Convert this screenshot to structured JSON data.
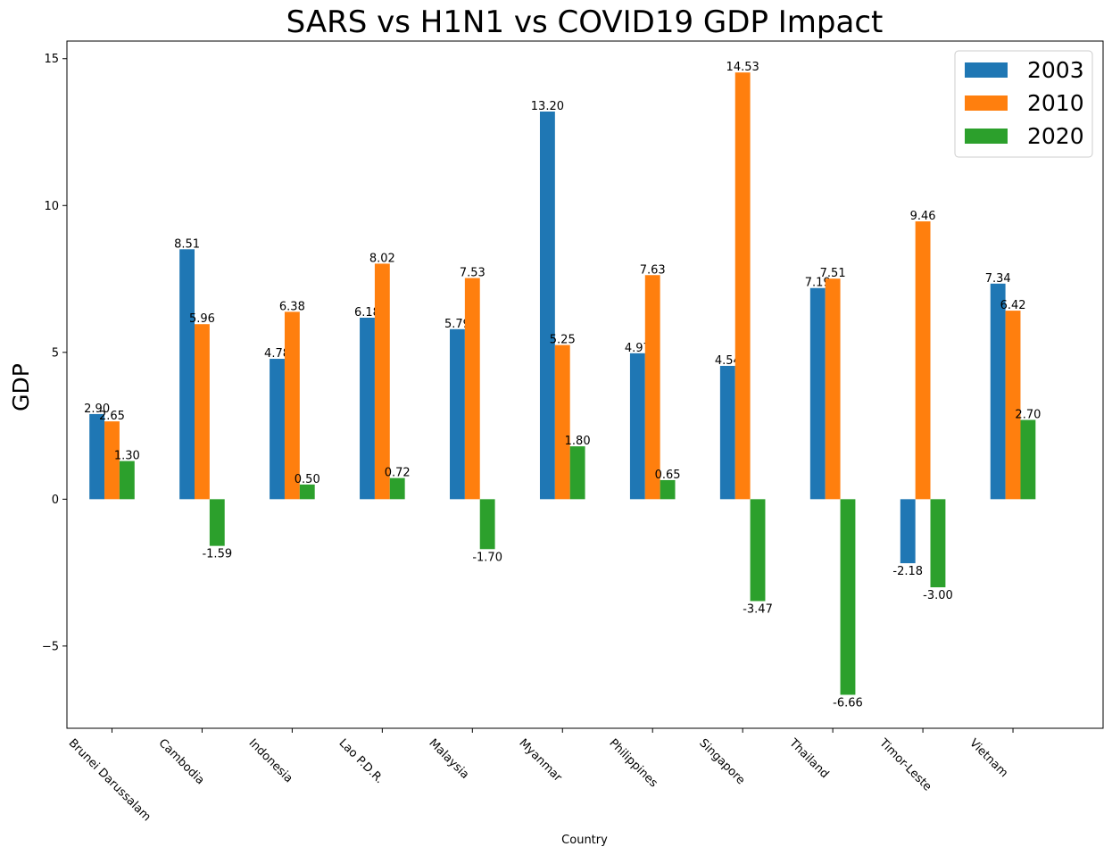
{
  "chart_data": {
    "type": "bar",
    "title": "SARS vs H1N1 vs COVID19 GDP Impact",
    "xlabel": "Country",
    "ylabel": "GDP",
    "categories": [
      "Brunei Darussalam",
      "Cambodia",
      "Indonesia",
      "Lao P.D.R.",
      "Malaysia",
      "Myanmar",
      "Philippines",
      "Singapore",
      "Thailand",
      "Timor-Leste",
      "Vietnam"
    ],
    "series": [
      {
        "name": "2003",
        "color": "#1f77b4",
        "values": [
          2.9,
          8.51,
          4.78,
          6.18,
          5.79,
          13.2,
          4.97,
          4.54,
          7.19,
          -2.18,
          7.34
        ],
        "labels": [
          "2.90",
          "8.51",
          "4.78",
          "6.18",
          "5.79",
          "13.20",
          "4.97",
          "4.54",
          "7.19",
          "-2.18",
          "7.34"
        ]
      },
      {
        "name": "2010",
        "color": "#ff7f0e",
        "values": [
          2.65,
          5.96,
          6.38,
          8.02,
          7.53,
          5.25,
          7.63,
          14.53,
          7.51,
          9.46,
          6.42
        ],
        "labels": [
          "2.65",
          "5.96",
          "6.38",
          "8.02",
          "7.53",
          "5.25",
          "7.63",
          "14.53",
          "7.51",
          "9.46",
          "6.42"
        ]
      },
      {
        "name": "2020",
        "color": "#2ca02c",
        "values": [
          1.3,
          -1.59,
          0.5,
          0.72,
          -1.7,
          1.8,
          0.65,
          -3.47,
          -6.66,
          -3.0,
          2.7
        ],
        "labels": [
          "1.30",
          "-1.59",
          "0.50",
          "0.72",
          "-1.70",
          "1.80",
          "0.65",
          "-3.47",
          "-6.66",
          "-3.00",
          "2.70"
        ]
      }
    ],
    "ylim": [
      -7.8,
      15.6
    ],
    "yticks": [
      -5,
      0,
      5,
      10,
      15
    ],
    "ytick_labels": [
      "−5",
      "0",
      "5",
      "10",
      "15"
    ],
    "grid": false,
    "legend_position": "top-right"
  }
}
